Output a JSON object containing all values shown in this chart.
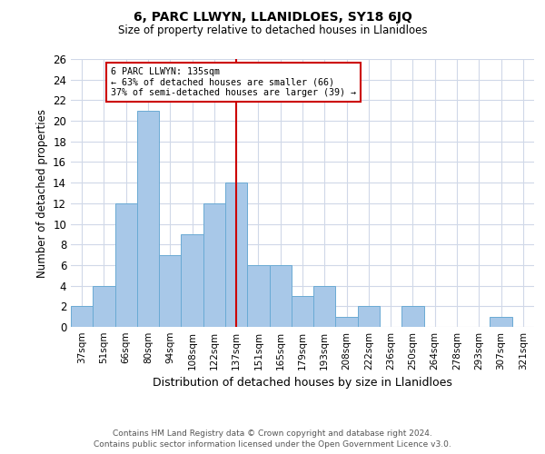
{
  "title": "6, PARC LLWYN, LLANIDLOES, SY18 6JQ",
  "subtitle": "Size of property relative to detached houses in Llanidloes",
  "xlabel": "Distribution of detached houses by size in Llanidloes",
  "ylabel": "Number of detached properties",
  "categories": [
    "37sqm",
    "51sqm",
    "66sqm",
    "80sqm",
    "94sqm",
    "108sqm",
    "122sqm",
    "137sqm",
    "151sqm",
    "165sqm",
    "179sqm",
    "193sqm",
    "208sqm",
    "222sqm",
    "236sqm",
    "250sqm",
    "264sqm",
    "278sqm",
    "293sqm",
    "307sqm",
    "321sqm"
  ],
  "values": [
    2,
    4,
    12,
    21,
    7,
    9,
    12,
    14,
    6,
    6,
    3,
    4,
    1,
    2,
    0,
    2,
    0,
    0,
    0,
    1,
    0
  ],
  "bar_color": "#a8c8e8",
  "bar_edgecolor": "#6aaad4",
  "property_line_index": 7,
  "property_label": "6 PARC LLWYN: 135sqm",
  "annotation_line1": "← 63% of detached houses are smaller (66)",
  "annotation_line2": "37% of semi-detached houses are larger (39) →",
  "annotation_box_color": "#ffffff",
  "annotation_box_edgecolor": "#cc0000",
  "vline_color": "#cc0000",
  "ylim": [
    0,
    26
  ],
  "yticks": [
    0,
    2,
    4,
    6,
    8,
    10,
    12,
    14,
    16,
    18,
    20,
    22,
    24,
    26
  ],
  "footer_line1": "Contains HM Land Registry data © Crown copyright and database right 2024.",
  "footer_line2": "Contains public sector information licensed under the Open Government Licence v3.0.",
  "background_color": "#ffffff",
  "grid_color": "#d0d8e8"
}
